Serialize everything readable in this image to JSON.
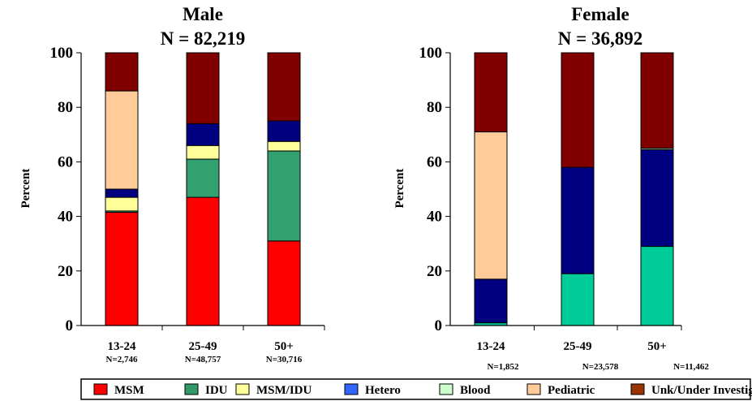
{
  "chart_data": [
    {
      "type": "bar",
      "stacked": true,
      "title": "Male",
      "subtitle": "N = 82,219",
      "ylabel": "Percent",
      "ylim": [
        0,
        100
      ],
      "yticks": [
        "0",
        "20",
        "40",
        "60",
        "80",
        "100"
      ],
      "categories": [
        "13-24",
        "25-49",
        "50+"
      ],
      "category_n": [
        "N=2,746",
        "N=48,757",
        "N=30,716"
      ],
      "series": [
        {
          "name": "MSM",
          "color": "#ff0000",
          "values": [
            41.5,
            47,
            31
          ]
        },
        {
          "name": "IDU",
          "color": "#33a070",
          "values": [
            0.5,
            14,
            33
          ]
        },
        {
          "name": "MSM/IDU",
          "color": "#ffff99",
          "values": [
            5,
            5,
            3.5
          ]
        },
        {
          "name": "Hetero",
          "color": "#000080",
          "values": [
            3,
            8,
            7.5
          ]
        },
        {
          "name": "Blood",
          "color": "#ccffcc",
          "values": [
            0,
            0,
            0
          ]
        },
        {
          "name": "Pediatric",
          "color": "#ffcc99",
          "values": [
            36,
            0,
            0
          ]
        },
        {
          "name": "Unk/Under Investigation",
          "color": "#800000",
          "values": [
            14,
            26,
            25
          ]
        }
      ]
    },
    {
      "type": "bar",
      "stacked": true,
      "title": "Female",
      "subtitle": "N = 36,892",
      "ylabel": "Percent",
      "ylim": [
        0,
        100
      ],
      "yticks": [
        "0",
        "20",
        "40",
        "60",
        "80",
        "100"
      ],
      "categories": [
        "13-24",
        "25-49",
        "50+"
      ],
      "category_n": [
        "N=1,852",
        "N=23,578",
        "N=11,462"
      ],
      "series": [
        {
          "name": "MSM",
          "color": "#ff0000",
          "values": [
            0,
            0,
            0
          ]
        },
        {
          "name": "IDU",
          "color": "#00cc99",
          "values": [
            1,
            19,
            29
          ]
        },
        {
          "name": "MSM/IDU",
          "color": "#ffff99",
          "values": [
            0,
            0,
            0
          ]
        },
        {
          "name": "Hetero",
          "color": "#000080",
          "values": [
            16,
            39,
            35.5
          ]
        },
        {
          "name": "Blood",
          "color": "#ccffcc",
          "values": [
            0,
            0,
            0.5
          ]
        },
        {
          "name": "Pediatric",
          "color": "#ffcc99",
          "values": [
            54,
            0,
            0
          ]
        },
        {
          "name": "Unk/Under Investigation",
          "color": "#800000",
          "values": [
            29,
            42,
            35
          ]
        }
      ]
    }
  ],
  "legend": {
    "placement": "bottom",
    "items": [
      {
        "label": "MSM",
        "color": "#ff0000"
      },
      {
        "label": "IDU",
        "color": "#339966"
      },
      {
        "label": "MSM/IDU",
        "color": "#ffff99"
      },
      {
        "label": "Hetero",
        "color": "#3366ff"
      },
      {
        "label": "Blood",
        "color": "#ccffcc"
      },
      {
        "label": "Pediatric",
        "color": "#ffcc99"
      },
      {
        "label": "Unk/Under Investigation",
        "color": "#993300"
      }
    ]
  }
}
